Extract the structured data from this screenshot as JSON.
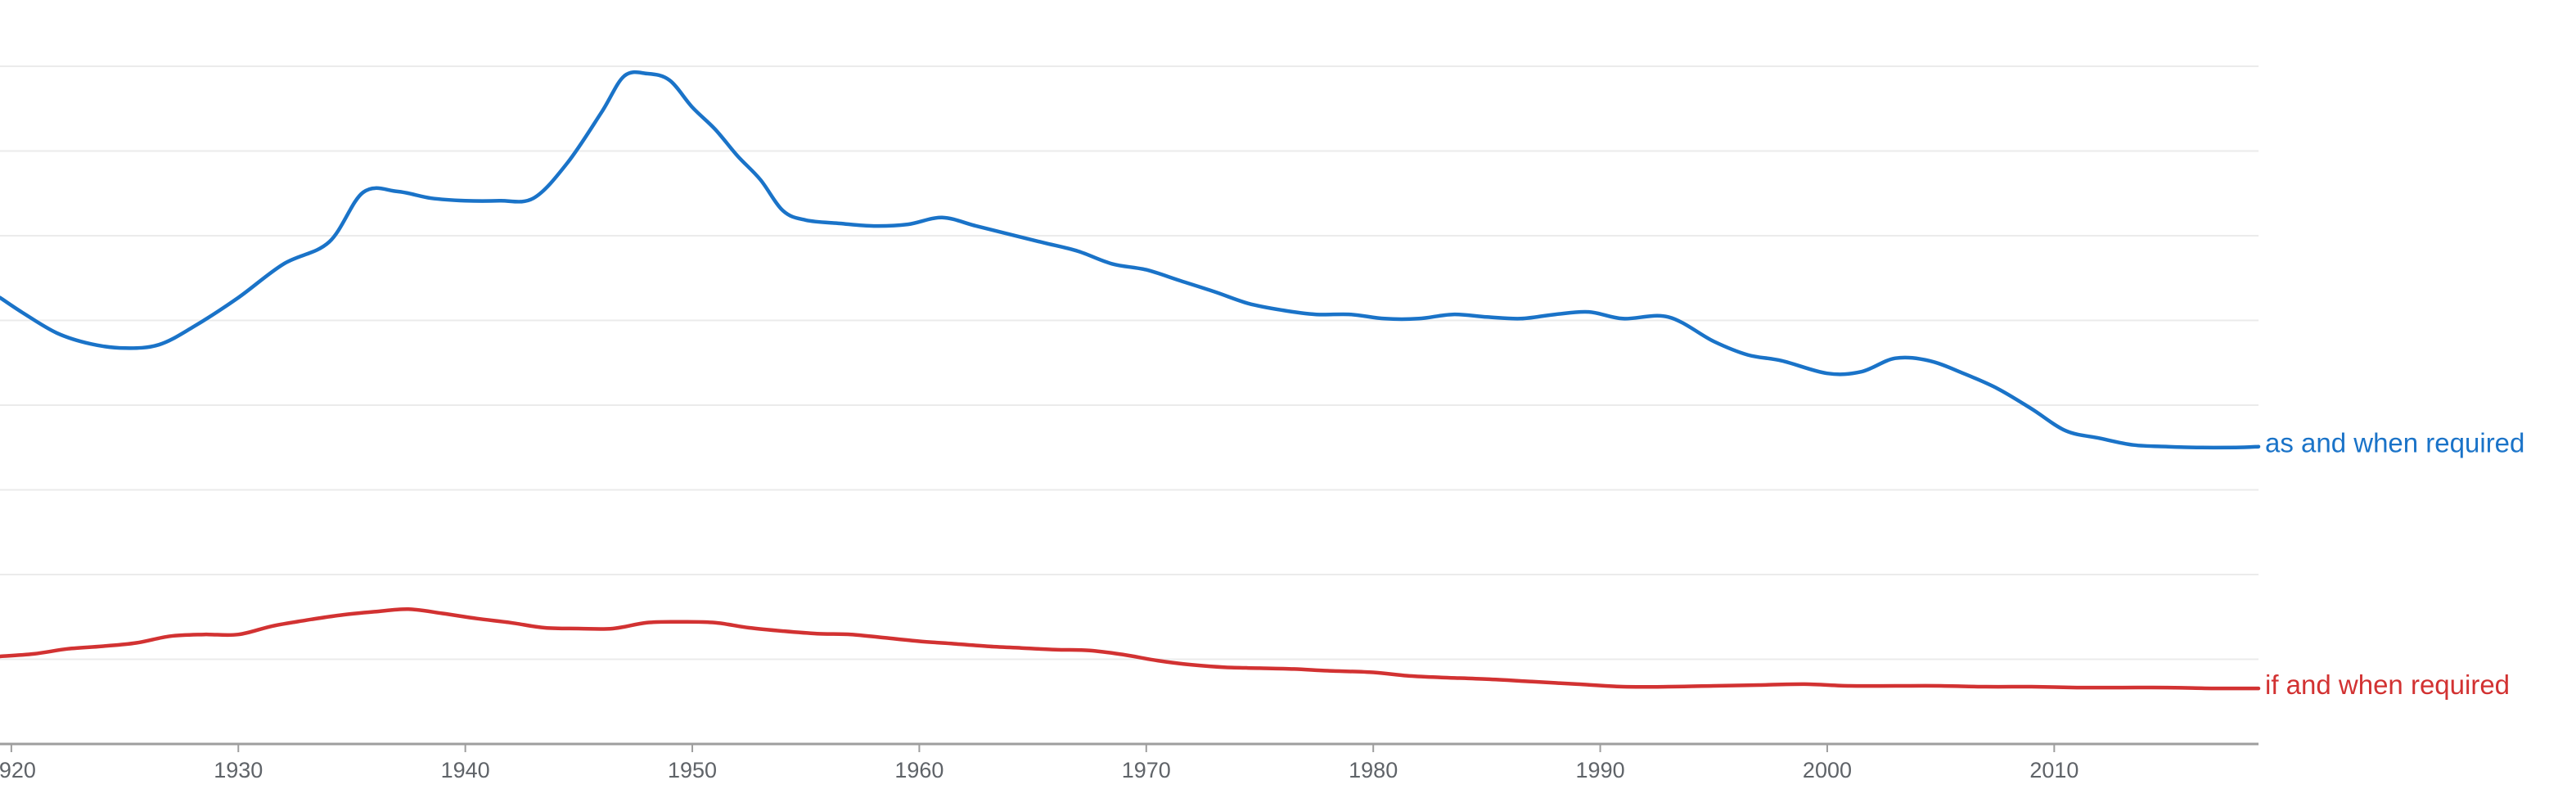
{
  "chart_data": {
    "type": "line",
    "title": "",
    "xlabel": "",
    "ylabel": "",
    "xlim": [
      1919.5,
      2019
    ],
    "ylim": [
      0,
      8.6
    ],
    "gridlines": 8,
    "x_ticks": [
      {
        "value": 1920,
        "label": "1920"
      },
      {
        "value": 1930,
        "label": "1930"
      },
      {
        "value": 1940,
        "label": "1940"
      },
      {
        "value": 1950,
        "label": "1950"
      },
      {
        "value": 1960,
        "label": "1960"
      },
      {
        "value": 1970,
        "label": "1970"
      },
      {
        "value": 1980,
        "label": "1980"
      },
      {
        "value": 1990,
        "label": "1990"
      },
      {
        "value": 2000,
        "label": "2000"
      },
      {
        "value": 2010,
        "label": "2010"
      }
    ],
    "series": [
      {
        "name": "as and when required",
        "color": "#1a73c8",
        "points": [
          [
            1919.5,
            5.3
          ],
          [
            1920.5,
            5.12
          ],
          [
            1922,
            4.88
          ],
          [
            1923.5,
            4.75
          ],
          [
            1925,
            4.7
          ],
          [
            1926.5,
            4.74
          ],
          [
            1928,
            4.95
          ],
          [
            1930,
            5.3
          ],
          [
            1932,
            5.7
          ],
          [
            1934,
            5.96
          ],
          [
            1935.5,
            6.55
          ],
          [
            1937,
            6.56
          ],
          [
            1938.5,
            6.48
          ],
          [
            1940,
            6.45
          ],
          [
            1941.5,
            6.45
          ],
          [
            1943,
            6.48
          ],
          [
            1944.5,
            6.9
          ],
          [
            1946,
            7.5
          ],
          [
            1947,
            7.93
          ],
          [
            1948,
            7.96
          ],
          [
            1949,
            7.88
          ],
          [
            1950,
            7.56
          ],
          [
            1951,
            7.3
          ],
          [
            1952,
            6.98
          ],
          [
            1953,
            6.7
          ],
          [
            1954,
            6.33
          ],
          [
            1955,
            6.22
          ],
          [
            1956.5,
            6.18
          ],
          [
            1958,
            6.15
          ],
          [
            1959.5,
            6.17
          ],
          [
            1961,
            6.25
          ],
          [
            1962.5,
            6.15
          ],
          [
            1964,
            6.05
          ],
          [
            1965.5,
            5.95
          ],
          [
            1967,
            5.85
          ],
          [
            1968.5,
            5.7
          ],
          [
            1970,
            5.63
          ],
          [
            1971.5,
            5.5
          ],
          [
            1973,
            5.37
          ],
          [
            1974.5,
            5.23
          ],
          [
            1976,
            5.15
          ],
          [
            1977.5,
            5.1
          ],
          [
            1979,
            5.1
          ],
          [
            1980.5,
            5.05
          ],
          [
            1982,
            5.05
          ],
          [
            1983.5,
            5.1
          ],
          [
            1985,
            5.07
          ],
          [
            1986.5,
            5.05
          ],
          [
            1988,
            5.1
          ],
          [
            1989.5,
            5.13
          ],
          [
            1991,
            5.05
          ],
          [
            1993,
            5.07
          ],
          [
            1995,
            4.78
          ],
          [
            1996.5,
            4.62
          ],
          [
            1998,
            4.55
          ],
          [
            2000,
            4.4
          ],
          [
            2001.5,
            4.42
          ],
          [
            2003,
            4.58
          ],
          [
            2004.5,
            4.55
          ],
          [
            2006,
            4.4
          ],
          [
            2007.5,
            4.22
          ],
          [
            2009,
            3.98
          ],
          [
            2010.5,
            3.72
          ],
          [
            2012,
            3.63
          ],
          [
            2013.5,
            3.55
          ],
          [
            2015,
            3.53
          ],
          [
            2016.5,
            3.52
          ],
          [
            2018,
            3.52
          ],
          [
            2019,
            3.53
          ]
        ]
      },
      {
        "name": "if and when required",
        "color": "#d23232",
        "points": [
          [
            1919.5,
            1.04
          ],
          [
            1921,
            1.07
          ],
          [
            1922.5,
            1.13
          ],
          [
            1924,
            1.16
          ],
          [
            1925.5,
            1.2
          ],
          [
            1927,
            1.28
          ],
          [
            1928.5,
            1.3
          ],
          [
            1930,
            1.3
          ],
          [
            1931.5,
            1.4
          ],
          [
            1933,
            1.47
          ],
          [
            1934.5,
            1.53
          ],
          [
            1936,
            1.57
          ],
          [
            1937.5,
            1.6
          ],
          [
            1939,
            1.55
          ],
          [
            1940.5,
            1.49
          ],
          [
            1942,
            1.44
          ],
          [
            1943.5,
            1.38
          ],
          [
            1945,
            1.37
          ],
          [
            1946.5,
            1.37
          ],
          [
            1948,
            1.44
          ],
          [
            1949.5,
            1.45
          ],
          [
            1951,
            1.44
          ],
          [
            1952.5,
            1.38
          ],
          [
            1954,
            1.34
          ],
          [
            1955.5,
            1.31
          ],
          [
            1957,
            1.3
          ],
          [
            1958.5,
            1.26
          ],
          [
            1960,
            1.22
          ],
          [
            1961.5,
            1.19
          ],
          [
            1963,
            1.16
          ],
          [
            1964.5,
            1.14
          ],
          [
            1966,
            1.12
          ],
          [
            1967.5,
            1.11
          ],
          [
            1969,
            1.06
          ],
          [
            1970.5,
            0.99
          ],
          [
            1972,
            0.94
          ],
          [
            1973.5,
            0.91
          ],
          [
            1975,
            0.9
          ],
          [
            1976.5,
            0.89
          ],
          [
            1978,
            0.87
          ],
          [
            1980,
            0.85
          ],
          [
            1981.5,
            0.81
          ],
          [
            1983,
            0.79
          ],
          [
            1985,
            0.77
          ],
          [
            1987,
            0.74
          ],
          [
            1989,
            0.71
          ],
          [
            1991,
            0.68
          ],
          [
            1993,
            0.68
          ],
          [
            1995,
            0.69
          ],
          [
            1997,
            0.7
          ],
          [
            1999,
            0.71
          ],
          [
            2001,
            0.69
          ],
          [
            2003,
            0.69
          ],
          [
            2005,
            0.69
          ],
          [
            2007,
            0.68
          ],
          [
            2009,
            0.68
          ],
          [
            2011,
            0.67
          ],
          [
            2013,
            0.67
          ],
          [
            2015,
            0.67
          ],
          [
            2017,
            0.66
          ],
          [
            2019,
            0.66
          ]
        ]
      }
    ]
  }
}
